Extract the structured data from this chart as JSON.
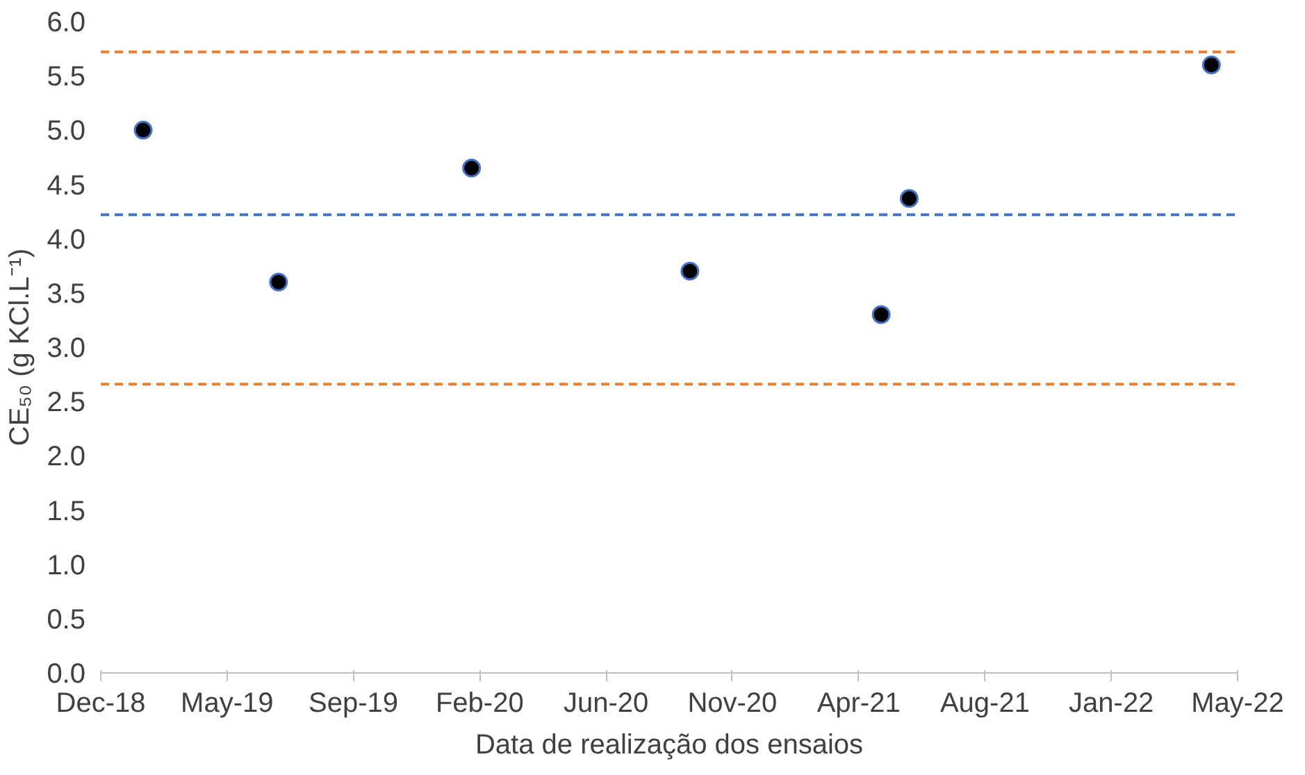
{
  "chart_data": {
    "type": "scatter",
    "xlabel": "Data de realização dos ensaios",
    "ylabel": "CE₅₀ (g KCl.L⁻¹)",
    "x": [
      "2019-01-29",
      "2019-06-28",
      "2020-01-28",
      "2020-09-26",
      "2021-04-26",
      "2021-05-27",
      "2022-04-27"
    ],
    "series": [
      {
        "color": "#000000",
        "values": [
          5.0,
          3.6,
          4.65,
          3.7,
          3.3,
          4.37,
          5.6
        ]
      }
    ],
    "marker": "circle",
    "grid": false,
    "xlim": [
      "2018-12-13",
      "2022-05-26"
    ],
    "xticks": [
      {
        "value": "2018-12-13",
        "label": "Dec-18"
      },
      {
        "value": "2019-05-02",
        "label": "May-19"
      },
      {
        "value": "2019-09-19",
        "label": "Sep-19"
      },
      {
        "value": "2020-02-06",
        "label": "Feb-20"
      },
      {
        "value": "2020-06-25",
        "label": "Jun-20"
      },
      {
        "value": "2020-11-12",
        "label": "Nov-20"
      },
      {
        "value": "2021-04-01",
        "label": "Apr-21"
      },
      {
        "value": "2021-08-19",
        "label": "Aug-21"
      },
      {
        "value": "2022-01-06",
        "label": "Jan-22"
      },
      {
        "value": "2022-05-26",
        "label": "May-22"
      }
    ],
    "ylim": [
      0,
      6
    ],
    "yticks": [
      {
        "value": 0,
        "label": "0.0"
      },
      {
        "value": 0.5,
        "label": "0.5"
      },
      {
        "value": 1,
        "label": "1.0"
      },
      {
        "value": 1.5,
        "label": "1.5"
      },
      {
        "value": 2,
        "label": "2.0"
      },
      {
        "value": 2.5,
        "label": "2.5"
      },
      {
        "value": 3,
        "label": "3.0"
      },
      {
        "value": 3.5,
        "label": "3.5"
      },
      {
        "value": 4,
        "label": "4.0"
      },
      {
        "value": 4.5,
        "label": "4.5"
      },
      {
        "value": 5,
        "label": "5.0"
      },
      {
        "value": 5.5,
        "label": "5.5"
      },
      {
        "value": 6,
        "label": "6.0"
      }
    ],
    "ref_lines": [
      {
        "axis": "y",
        "value": 5.72,
        "color": "#ed7d31",
        "line_style": "dashed"
      },
      {
        "axis": "y",
        "value": 4.22,
        "color": "#4472c4",
        "line_style": "dashed"
      },
      {
        "axis": "y",
        "value": 2.66,
        "color": "#ed7d31",
        "line_style": "dashed"
      }
    ]
  }
}
